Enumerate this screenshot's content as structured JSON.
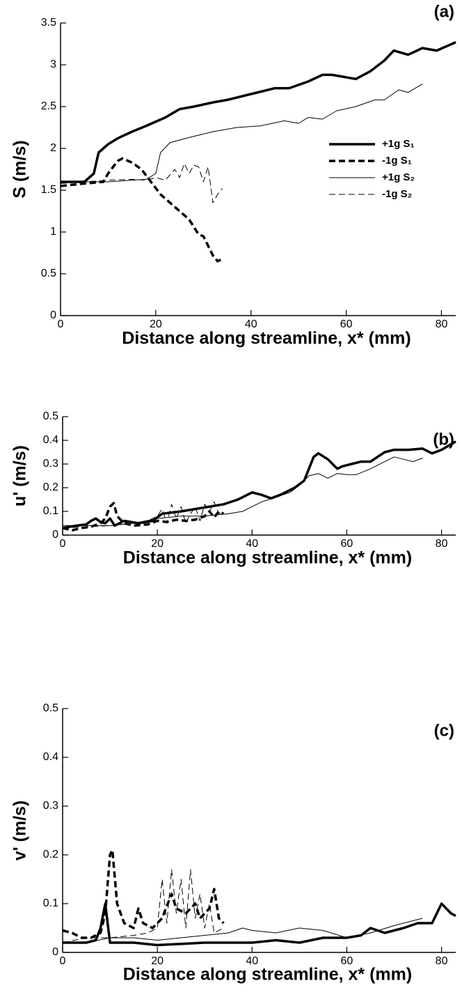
{
  "chart_data": [
    {
      "type": "line",
      "panel": "(a)",
      "x_label": "Distance along streamline, x* (mm)",
      "y_label": "S (m/s)",
      "xlim": [
        0,
        83
      ],
      "xticks": [
        0,
        20,
        40,
        60,
        80
      ],
      "ylim": [
        0,
        3.5
      ],
      "yticks": [
        0,
        0.5,
        1,
        1.5,
        2,
        2.5,
        3,
        3.5
      ],
      "legend": "right",
      "series": [
        {
          "name": "+1g S₁",
          "color": "#000000",
          "linewidth": "thick",
          "linestyle": "solid",
          "x": [
            0,
            5,
            7,
            8,
            10,
            12,
            15,
            18,
            22,
            25,
            28,
            32,
            35,
            40,
            45,
            48,
            52,
            55,
            57,
            62,
            65,
            68,
            70,
            73,
            76,
            79,
            83
          ],
          "values": [
            1.6,
            1.6,
            1.7,
            1.95,
            2.05,
            2.12,
            2.2,
            2.27,
            2.37,
            2.47,
            2.5,
            2.55,
            2.58,
            2.65,
            2.72,
            2.72,
            2.8,
            2.88,
            2.88,
            2.83,
            2.92,
            3.05,
            3.17,
            3.12,
            3.2,
            3.17,
            3.27
          ]
        },
        {
          "name": "-1g S₁",
          "color": "#000000",
          "linewidth": "thick",
          "linestyle": "dashed",
          "x": [
            0,
            5,
            9,
            10,
            12,
            13,
            15,
            17,
            19,
            21,
            24,
            27,
            29,
            30,
            32,
            33,
            34
          ],
          "values": [
            1.55,
            1.58,
            1.6,
            1.7,
            1.85,
            1.88,
            1.83,
            1.75,
            1.6,
            1.45,
            1.3,
            1.15,
            0.97,
            0.95,
            0.72,
            0.65,
            0.68
          ]
        },
        {
          "name": "+1g S₂",
          "color": "#000000",
          "linewidth": "thin",
          "linestyle": "solid",
          "x": [
            0,
            10,
            15,
            18,
            20,
            21,
            23,
            27,
            32,
            37,
            42,
            47,
            50,
            52,
            55,
            58,
            62,
            66,
            68,
            71,
            73,
            76
          ],
          "values": [
            1.6,
            1.6,
            1.62,
            1.63,
            1.7,
            1.95,
            2.07,
            2.13,
            2.2,
            2.25,
            2.27,
            2.33,
            2.3,
            2.37,
            2.35,
            2.45,
            2.5,
            2.58,
            2.58,
            2.7,
            2.67,
            2.77
          ]
        },
        {
          "name": "-1g S₂",
          "color": "#000000",
          "linewidth": "thin",
          "linestyle": "dashed",
          "x": [
            0,
            5,
            10,
            15,
            18,
            20,
            22,
            24,
            25,
            26,
            27,
            28,
            29,
            30,
            31,
            32,
            33,
            34
          ],
          "values": [
            1.58,
            1.6,
            1.62,
            1.63,
            1.62,
            1.65,
            1.62,
            1.75,
            1.65,
            1.82,
            1.7,
            1.8,
            1.78,
            1.6,
            1.78,
            1.35,
            1.45,
            1.52
          ]
        }
      ]
    },
    {
      "type": "line",
      "panel": "(b)",
      "x_label": "Distance along streamline, x* (mm)",
      "y_label": "u' (m/s)",
      "xlim": [
        0,
        83
      ],
      "xticks": [
        0,
        20,
        40,
        60,
        80
      ],
      "ylim": [
        0,
        0.5
      ],
      "yticks": [
        0,
        0.1,
        0.2,
        0.3,
        0.4,
        0.5
      ],
      "series": [
        {
          "color": "#000000",
          "linewidth": "thick",
          "linestyle": "solid",
          "x": [
            0,
            3,
            5,
            6,
            7,
            8,
            9,
            10,
            11,
            13,
            16,
            19,
            21,
            23,
            25,
            28,
            31,
            34,
            37,
            40,
            42,
            44,
            46,
            49,
            51,
            53,
            54,
            56,
            58,
            59,
            61,
            63,
            65,
            68,
            70,
            73,
            76,
            78,
            80,
            83
          ],
          "values": [
            0.03,
            0.04,
            0.045,
            0.06,
            0.07,
            0.055,
            0.05,
            0.07,
            0.04,
            0.06,
            0.05,
            0.06,
            0.09,
            0.095,
            0.1,
            0.11,
            0.12,
            0.13,
            0.15,
            0.18,
            0.17,
            0.155,
            0.17,
            0.2,
            0.23,
            0.33,
            0.345,
            0.32,
            0.28,
            0.29,
            0.3,
            0.31,
            0.31,
            0.35,
            0.36,
            0.36,
            0.365,
            0.345,
            0.36,
            0.395
          ]
        },
        {
          "color": "#000000",
          "linewidth": "thick",
          "linestyle": "dashed",
          "x": [
            0,
            2,
            4,
            6,
            8,
            9,
            10,
            10.8,
            11.5,
            13,
            15,
            18,
            20,
            22,
            24,
            26,
            28,
            30,
            31,
            32,
            33,
            34
          ],
          "values": [
            0.03,
            0.02,
            0.03,
            0.035,
            0.05,
            0.07,
            0.12,
            0.135,
            0.08,
            0.05,
            0.04,
            0.045,
            0.06,
            0.055,
            0.065,
            0.06,
            0.065,
            0.08,
            0.1,
            0.075,
            0.1,
            0.09
          ]
        },
        {
          "color": "#000000",
          "linewidth": "thin",
          "linestyle": "solid",
          "x": [
            0,
            10,
            15,
            20,
            25,
            30,
            35,
            38,
            42,
            45,
            48,
            50,
            52,
            54,
            56,
            58,
            60,
            62,
            65,
            68,
            70,
            72,
            74,
            76
          ],
          "values": [
            0.04,
            0.04,
            0.05,
            0.07,
            0.08,
            0.08,
            0.09,
            0.1,
            0.14,
            0.16,
            0.18,
            0.21,
            0.25,
            0.26,
            0.24,
            0.26,
            0.255,
            0.255,
            0.28,
            0.31,
            0.33,
            0.32,
            0.31,
            0.325
          ]
        },
        {
          "color": "#000000",
          "linewidth": "thin",
          "linestyle": "dashed",
          "x": [
            0,
            5,
            10,
            15,
            18,
            20,
            21,
            22,
            23,
            24,
            25,
            26,
            27,
            28,
            29,
            30,
            31,
            32,
            33,
            34
          ],
          "values": [
            0.03,
            0.035,
            0.04,
            0.05,
            0.06,
            0.08,
            0.11,
            0.05,
            0.13,
            0.07,
            0.12,
            0.05,
            0.09,
            0.12,
            0.06,
            0.13,
            0.1,
            0.14,
            0.09,
            0.1
          ]
        }
      ]
    },
    {
      "type": "line",
      "panel": "(c)",
      "x_label": "Distance along streamline, x* (mm)",
      "y_label": "v' (m/s)",
      "xlim": [
        0,
        83
      ],
      "xticks": [
        0,
        20,
        40,
        60,
        80
      ],
      "ylim": [
        0,
        0.5
      ],
      "yticks": [
        0,
        0.1,
        0.2,
        0.3,
        0.4,
        0.5
      ],
      "series": [
        {
          "color": "#000000",
          "linewidth": "thick",
          "linestyle": "solid",
          "x": [
            0,
            5,
            7,
            8,
            9,
            9.5,
            10,
            15,
            20,
            30,
            35,
            40,
            45,
            50,
            55,
            60,
            63,
            65,
            68,
            72,
            75,
            78,
            80,
            82,
            83
          ],
          "values": [
            0.02,
            0.02,
            0.025,
            0.05,
            0.1,
            0.06,
            0.02,
            0.02,
            0.015,
            0.02,
            0.02,
            0.02,
            0.025,
            0.02,
            0.03,
            0.03,
            0.035,
            0.05,
            0.04,
            0.05,
            0.06,
            0.06,
            0.1,
            0.08,
            0.075
          ]
        },
        {
          "color": "#000000",
          "linewidth": "thick",
          "linestyle": "dashed",
          "x": [
            0,
            2,
            4,
            6,
            8,
            9,
            10,
            10.5,
            11.5,
            13,
            15,
            16,
            17,
            19,
            21,
            23,
            24,
            26,
            28,
            29,
            31,
            32,
            33,
            34
          ],
          "values": [
            0.045,
            0.04,
            0.03,
            0.03,
            0.04,
            0.08,
            0.2,
            0.21,
            0.1,
            0.06,
            0.05,
            0.09,
            0.06,
            0.05,
            0.07,
            0.12,
            0.09,
            0.08,
            0.1,
            0.07,
            0.09,
            0.13,
            0.07,
            0.06
          ]
        },
        {
          "color": "#000000",
          "linewidth": "thin",
          "linestyle": "solid",
          "x": [
            0,
            5,
            10,
            15,
            20,
            25,
            30,
            35,
            38,
            40,
            45,
            50,
            55,
            60,
            65,
            70,
            76
          ],
          "values": [
            0.02,
            0.02,
            0.03,
            0.03,
            0.025,
            0.03,
            0.035,
            0.04,
            0.05,
            0.045,
            0.04,
            0.05,
            0.045,
            0.03,
            0.04,
            0.055,
            0.07
          ]
        },
        {
          "color": "#000000",
          "linewidth": "thin",
          "linestyle": "dashed",
          "x": [
            0,
            5,
            10,
            15,
            18,
            20,
            21,
            22,
            23,
            24,
            25,
            26,
            27,
            28,
            29,
            30,
            31,
            32,
            34
          ],
          "values": [
            0.02,
            0.03,
            0.03,
            0.035,
            0.04,
            0.05,
            0.15,
            0.06,
            0.17,
            0.08,
            0.15,
            0.05,
            0.17,
            0.07,
            0.12,
            0.05,
            0.1,
            0.04,
            0.05
          ]
        }
      ]
    }
  ]
}
